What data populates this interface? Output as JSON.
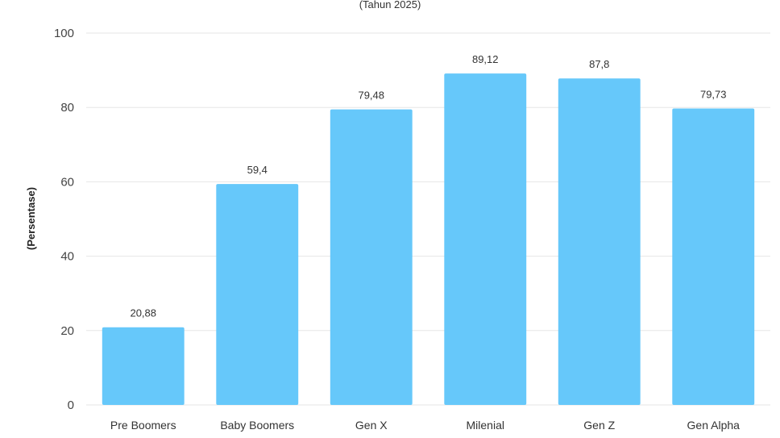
{
  "chart_data": {
    "type": "bar",
    "subtitle": "(Tahun 2025)",
    "xlabel": "",
    "ylabel": "(Persentase)",
    "categories": [
      "Pre Boomers",
      "Baby Boomers",
      "Gen X",
      "Milenial",
      "Gen Z",
      "Gen Alpha"
    ],
    "values": [
      20.88,
      59.4,
      79.48,
      89.12,
      87.8,
      79.73
    ],
    "value_labels": [
      "20,88",
      "59,4",
      "79,48",
      "89,12",
      "87,8",
      "79,73"
    ],
    "ylim": [
      0,
      100
    ],
    "yticks": [
      0,
      20,
      40,
      60,
      80,
      100
    ],
    "grid": true,
    "bar_color": "#66c8fa"
  }
}
